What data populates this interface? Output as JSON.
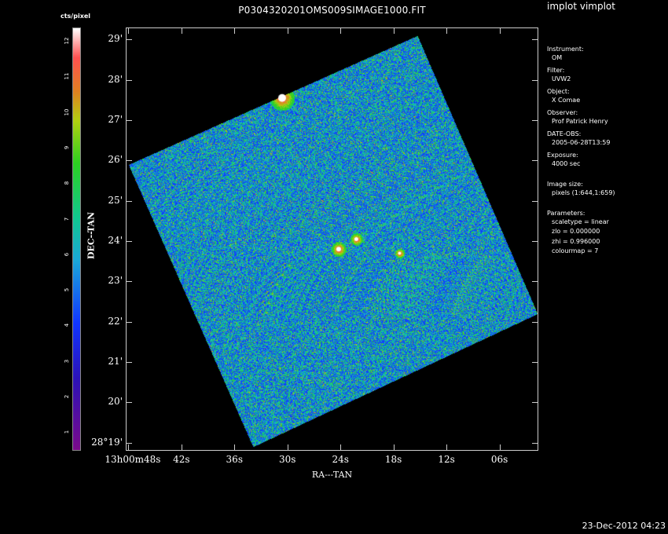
{
  "window": {
    "app_title": "implot vimplot",
    "timestamp": "23-Dec-2012 04:23"
  },
  "chart_data": {
    "type": "heatmap",
    "title": "P0304320201OMS009SIMAGE1000.FIT",
    "xlabel": "RA---TAN",
    "ylabel": "DEC--TAN",
    "colorbar_label": "cts/pixel",
    "colorbar_ticks": [
      "1",
      "2",
      "3",
      "4",
      "5",
      "6",
      "7",
      "8",
      "9",
      "10",
      "11",
      "12"
    ],
    "colorbar_range": [
      0.5,
      12.4
    ],
    "colormap": [
      {
        "stop": 0.0,
        "color": "#7a0a8a"
      },
      {
        "stop": 0.17,
        "color": "#2b12b8"
      },
      {
        "stop": 0.3,
        "color": "#1035ff"
      },
      {
        "stop": 0.45,
        "color": "#1aa8d8"
      },
      {
        "stop": 0.55,
        "color": "#10c890"
      },
      {
        "stop": 0.68,
        "color": "#2cd020"
      },
      {
        "stop": 0.78,
        "color": "#b0d010"
      },
      {
        "stop": 0.85,
        "color": "#e08020"
      },
      {
        "stop": 0.93,
        "color": "#ff5050"
      },
      {
        "stop": 1.0,
        "color": "#ffffff"
      }
    ],
    "y_ticks": [
      "28°19'",
      "20'",
      "21'",
      "22'",
      "23'",
      "24'",
      "25'",
      "26'",
      "27'",
      "28'",
      "29'"
    ],
    "y_tick_arcmin": [
      19,
      20,
      21,
      22,
      23,
      24,
      25,
      26,
      27,
      28,
      29
    ],
    "y_range_arcmin": [
      18.8,
      29.3
    ],
    "x_ticks": [
      "13h00m48s",
      "42s",
      "36s",
      "30s",
      "24s",
      "18s",
      "12s",
      "06s"
    ],
    "x_tick_seconds": [
      48,
      42,
      36,
      30,
      24,
      18,
      12,
      6
    ],
    "x_range_seconds": [
      48.3,
      1.6
    ],
    "sky_region_corners": [
      {
        "ra_s": 15.3,
        "dec_am": 29.1
      },
      {
        "ra_s": 1.7,
        "dec_am": 22.2
      },
      {
        "ra_s": 33.9,
        "dec_am": 18.9
      },
      {
        "ra_s": 48.0,
        "dec_am": 25.9
      }
    ],
    "sources": [
      {
        "ra_s": 30.6,
        "dec_am": 27.55,
        "brightness": 12,
        "radius": 5
      },
      {
        "ra_s": 24.2,
        "dec_am": 23.8,
        "brightness": 11,
        "radius": 3
      },
      {
        "ra_s": 22.2,
        "dec_am": 24.05,
        "brightness": 10,
        "radius": 2.5
      },
      {
        "ra_s": 17.3,
        "dec_am": 23.7,
        "brightness": 9,
        "radius": 2
      }
    ]
  },
  "info": {
    "instrument_label": "Instrument:",
    "instrument": "OM",
    "filter_label": "Filter:",
    "filter": "UVW2",
    "object_label": "Object:",
    "object": "X Comae",
    "observer_label": "Observer:",
    "observer": "Prof Patrick Henry",
    "date_label": "DATE-OBS:",
    "date": "2005-06-28T13:59",
    "exposure_label": "Exposure:",
    "exposure": "4000 sec",
    "image_size_label": "Image size:",
    "image_size": "pixels (1:644,1:659)",
    "parameters_label": "Parameters:",
    "scaletype": "scaletype = linear",
    "zlo": "zlo = 0.000000",
    "zhi": "zhi = 0.996000",
    "colourmap": "colourmap =   7"
  }
}
